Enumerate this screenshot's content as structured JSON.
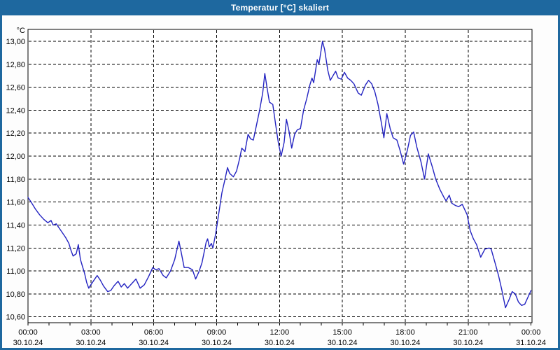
{
  "window": {
    "title": "Temperatur [°C] skaliert"
  },
  "colors": {
    "titlebar": "#1e689f",
    "window_border": "#1e689f",
    "plot_background": "#ffffff",
    "plot_border": "#000000",
    "grid": "#000000",
    "line": "#2323c1",
    "text": "#000000"
  },
  "chart_data": {
    "type": "line",
    "title": "Temperatur [°C] skaliert",
    "y_unit_label": "°C",
    "xlabel": "",
    "ylabel": "°C",
    "ylim": [
      10.6,
      13.0
    ],
    "y_tick_step": 0.2,
    "grid": "dashed",
    "legend_position": "none",
    "y_ticks": [
      {
        "value": 13.0,
        "label": "13,00"
      },
      {
        "value": 12.8,
        "label": "12,80"
      },
      {
        "value": 12.6,
        "label": "12,60"
      },
      {
        "value": 12.4,
        "label": "12,40"
      },
      {
        "value": 12.2,
        "label": "12,20"
      },
      {
        "value": 12.0,
        "label": "12,00"
      },
      {
        "value": 11.8,
        "label": "11,80"
      },
      {
        "value": 11.6,
        "label": "11,60"
      },
      {
        "value": 11.4,
        "label": "11,40"
      },
      {
        "value": 11.2,
        "label": "11,20"
      },
      {
        "value": 11.0,
        "label": "11,00"
      },
      {
        "value": 10.8,
        "label": "10,80"
      },
      {
        "value": 10.6,
        "label": "10,60"
      }
    ],
    "x_range_hours": [
      0,
      24
    ],
    "x_minor_tick_hours": 1,
    "x_ticks": [
      {
        "hour": 0,
        "time": "00:00",
        "date": "30.10.24"
      },
      {
        "hour": 3,
        "time": "03:00",
        "date": "30.10.24"
      },
      {
        "hour": 6,
        "time": "06:00",
        "date": "30.10.24"
      },
      {
        "hour": 9,
        "time": "09:00",
        "date": "30.10.24"
      },
      {
        "hour": 12,
        "time": "12:00",
        "date": "30.10.24"
      },
      {
        "hour": 15,
        "time": "15:00",
        "date": "30.10.24"
      },
      {
        "hour": 18,
        "time": "18:00",
        "date": "30.10.24"
      },
      {
        "hour": 21,
        "time": "21:00",
        "date": "30.10.24"
      },
      {
        "hour": 24,
        "time": "00:00",
        "date": "31.10.24"
      }
    ],
    "series": [
      {
        "name": "Temperatur",
        "color": "#2323c1",
        "points": [
          [
            0.0,
            11.64
          ],
          [
            0.15,
            11.6
          ],
          [
            0.35,
            11.54
          ],
          [
            0.55,
            11.49
          ],
          [
            0.75,
            11.45
          ],
          [
            0.95,
            11.42
          ],
          [
            1.1,
            11.44
          ],
          [
            1.2,
            11.4
          ],
          [
            1.35,
            11.41
          ],
          [
            1.5,
            11.37
          ],
          [
            1.65,
            11.33
          ],
          [
            1.8,
            11.29
          ],
          [
            1.95,
            11.24
          ],
          [
            2.05,
            11.18
          ],
          [
            2.15,
            11.13
          ],
          [
            2.3,
            11.15
          ],
          [
            2.4,
            11.23
          ],
          [
            2.5,
            11.1
          ],
          [
            2.6,
            11.04
          ],
          [
            2.7,
            10.98
          ],
          [
            2.8,
            10.9
          ],
          [
            2.9,
            10.85
          ],
          [
            3.0,
            10.88
          ],
          [
            3.15,
            10.92
          ],
          [
            3.3,
            10.96
          ],
          [
            3.45,
            10.92
          ],
          [
            3.6,
            10.87
          ],
          [
            3.8,
            10.82
          ],
          [
            3.95,
            10.83
          ],
          [
            4.1,
            10.87
          ],
          [
            4.3,
            10.91
          ],
          [
            4.45,
            10.86
          ],
          [
            4.6,
            10.89
          ],
          [
            4.75,
            10.85
          ],
          [
            4.95,
            10.89
          ],
          [
            5.15,
            10.93
          ],
          [
            5.35,
            10.85
          ],
          [
            5.55,
            10.88
          ],
          [
            5.75,
            10.95
          ],
          [
            5.95,
            11.03
          ],
          [
            6.1,
            11.01
          ],
          [
            6.25,
            11.02
          ],
          [
            6.45,
            10.96
          ],
          [
            6.6,
            10.94
          ],
          [
            6.8,
            11.0
          ],
          [
            7.0,
            11.1
          ],
          [
            7.2,
            11.26
          ],
          [
            7.3,
            11.17
          ],
          [
            7.45,
            11.03
          ],
          [
            7.65,
            11.03
          ],
          [
            7.85,
            11.01
          ],
          [
            8.0,
            10.93
          ],
          [
            8.15,
            10.99
          ],
          [
            8.3,
            11.07
          ],
          [
            8.5,
            11.25
          ],
          [
            8.57,
            11.28
          ],
          [
            8.65,
            11.21
          ],
          [
            8.75,
            11.24
          ],
          [
            8.82,
            11.2
          ],
          [
            8.95,
            11.32
          ],
          [
            9.1,
            11.5
          ],
          [
            9.25,
            11.68
          ],
          [
            9.4,
            11.8
          ],
          [
            9.52,
            11.9
          ],
          [
            9.62,
            11.85
          ],
          [
            9.8,
            11.82
          ],
          [
            9.95,
            11.87
          ],
          [
            10.1,
            11.98
          ],
          [
            10.2,
            12.07
          ],
          [
            10.35,
            12.04
          ],
          [
            10.5,
            12.19
          ],
          [
            10.62,
            12.15
          ],
          [
            10.75,
            12.14
          ],
          [
            10.9,
            12.27
          ],
          [
            11.05,
            12.4
          ],
          [
            11.2,
            12.55
          ],
          [
            11.3,
            12.72
          ],
          [
            11.42,
            12.58
          ],
          [
            11.52,
            12.47
          ],
          [
            11.68,
            12.45
          ],
          [
            11.82,
            12.27
          ],
          [
            11.95,
            12.11
          ],
          [
            12.08,
            12.0
          ],
          [
            12.22,
            12.12
          ],
          [
            12.33,
            12.32
          ],
          [
            12.45,
            12.22
          ],
          [
            12.58,
            12.07
          ],
          [
            12.72,
            12.19
          ],
          [
            12.85,
            12.23
          ],
          [
            13.0,
            12.24
          ],
          [
            13.15,
            12.4
          ],
          [
            13.3,
            12.5
          ],
          [
            13.45,
            12.62
          ],
          [
            13.55,
            12.68
          ],
          [
            13.63,
            12.64
          ],
          [
            13.8,
            12.84
          ],
          [
            13.88,
            12.8
          ],
          [
            14.05,
            13.0
          ],
          [
            14.15,
            12.93
          ],
          [
            14.3,
            12.75
          ],
          [
            14.42,
            12.66
          ],
          [
            14.55,
            12.7
          ],
          [
            14.68,
            12.74
          ],
          [
            14.8,
            12.68
          ],
          [
            14.95,
            12.67
          ],
          [
            15.1,
            12.73
          ],
          [
            15.25,
            12.68
          ],
          [
            15.4,
            12.66
          ],
          [
            15.55,
            12.63
          ],
          [
            15.75,
            12.55
          ],
          [
            15.9,
            12.53
          ],
          [
            16.1,
            12.62
          ],
          [
            16.25,
            12.66
          ],
          [
            16.4,
            12.63
          ],
          [
            16.55,
            12.56
          ],
          [
            16.7,
            12.45
          ],
          [
            16.85,
            12.3
          ],
          [
            16.98,
            12.16
          ],
          [
            17.12,
            12.37
          ],
          [
            17.28,
            12.24
          ],
          [
            17.42,
            12.16
          ],
          [
            17.6,
            12.14
          ],
          [
            17.75,
            12.05
          ],
          [
            17.92,
            11.93
          ],
          [
            18.1,
            12.05
          ],
          [
            18.25,
            12.18
          ],
          [
            18.4,
            12.21
          ],
          [
            18.55,
            12.08
          ],
          [
            18.75,
            11.95
          ],
          [
            18.92,
            11.8
          ],
          [
            19.1,
            12.02
          ],
          [
            19.3,
            11.9
          ],
          [
            19.45,
            11.8
          ],
          [
            19.65,
            11.71
          ],
          [
            19.85,
            11.64
          ],
          [
            19.95,
            11.61
          ],
          [
            20.1,
            11.66
          ],
          [
            20.22,
            11.59
          ],
          [
            20.4,
            11.57
          ],
          [
            20.55,
            11.56
          ],
          [
            20.72,
            11.58
          ],
          [
            20.95,
            11.49
          ],
          [
            21.1,
            11.35
          ],
          [
            21.25,
            11.28
          ],
          [
            21.4,
            11.23
          ],
          [
            21.6,
            11.12
          ],
          [
            21.8,
            11.19
          ],
          [
            22.0,
            11.2
          ],
          [
            22.1,
            11.19
          ],
          [
            22.3,
            11.06
          ],
          [
            22.45,
            10.96
          ],
          [
            22.6,
            10.84
          ],
          [
            22.78,
            10.68
          ],
          [
            22.95,
            10.75
          ],
          [
            23.1,
            10.82
          ],
          [
            23.25,
            10.8
          ],
          [
            23.4,
            10.73
          ],
          [
            23.55,
            10.7
          ],
          [
            23.7,
            10.71
          ],
          [
            23.85,
            10.77
          ],
          [
            24.0,
            10.83
          ]
        ]
      }
    ]
  }
}
